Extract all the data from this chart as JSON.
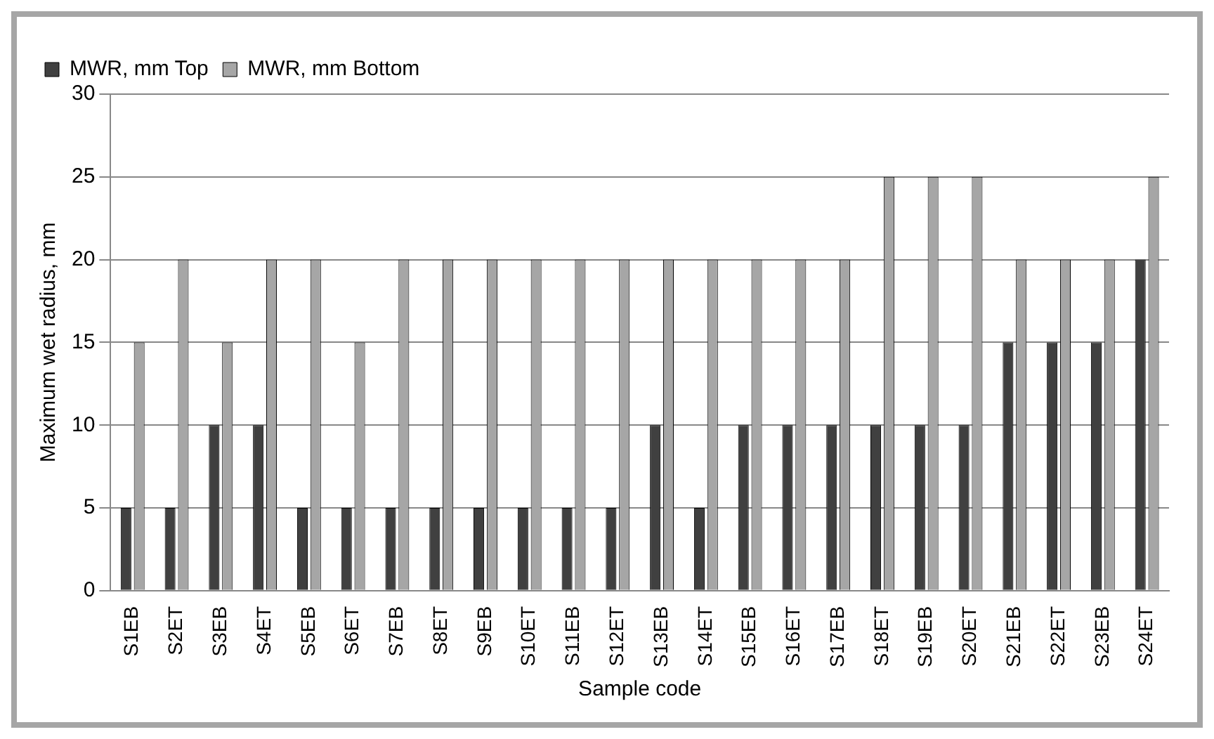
{
  "chart_data": {
    "type": "bar",
    "xlabel": "Sample code",
    "ylabel": "Maximum wet radius, mm",
    "categories": [
      "S1EB",
      "S2ET",
      "S3EB",
      "S4ET",
      "S5EB",
      "S6ET",
      "S7EB",
      "S8ET",
      "S9EB",
      "S10ET",
      "S11EB",
      "S12ET",
      "S13EB",
      "S14ET",
      "S15EB",
      "S16ET",
      "S17EB",
      "S18ET",
      "S19EB",
      "S20ET",
      "S21EB",
      "S22ET",
      "S23EB",
      "S24ET"
    ],
    "series": [
      {
        "name": "MWR, mm Top",
        "color": "#404040",
        "values": [
          5,
          5,
          10,
          10,
          5,
          5,
          5,
          5,
          5,
          5,
          5,
          5,
          10,
          5,
          10,
          10,
          10,
          10,
          10,
          10,
          15,
          15,
          15,
          20
        ]
      },
      {
        "name": "MWR, mm Bottom",
        "color": "#a6a6a6",
        "values": [
          15,
          20,
          15,
          20,
          20,
          15,
          20,
          20,
          20,
          20,
          20,
          20,
          20,
          20,
          20,
          20,
          20,
          25,
          25,
          25,
          20,
          20,
          20,
          25
        ]
      }
    ],
    "ylim": [
      0,
      30
    ],
    "yticks": [
      0,
      5,
      10,
      15,
      20,
      25,
      30
    ],
    "grid": "y",
    "legend": "top left"
  }
}
